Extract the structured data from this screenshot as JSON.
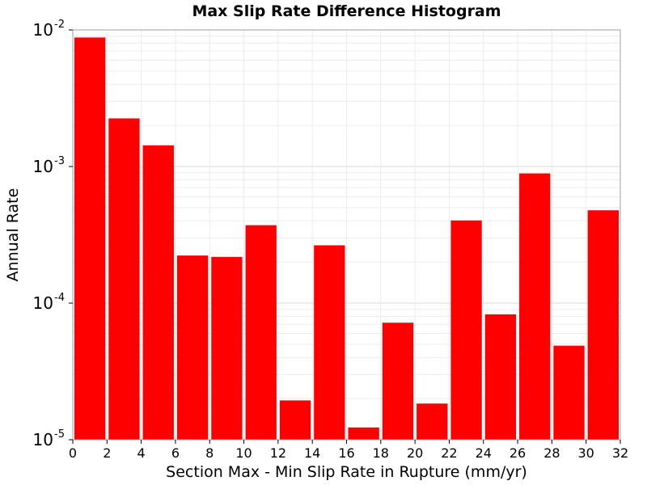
{
  "chart_data": {
    "type": "bar",
    "title": "Max Slip Rate Difference Histogram",
    "xlabel": "Section Max - Min Slip Rate in Rupture (mm/yr)",
    "ylabel": "Annual Rate",
    "yscale": "log",
    "xlim": [
      0,
      32
    ],
    "ylim": [
      1e-05,
      0.01
    ],
    "x_ticks": [
      "0",
      "2",
      "4",
      "6",
      "8",
      "10",
      "12",
      "14",
      "16",
      "18",
      "20",
      "22",
      "24",
      "26",
      "28",
      "30",
      "32"
    ],
    "y_ticks": [
      {
        "value": 0.01,
        "base": "10",
        "exp": "-2"
      },
      {
        "value": 0.001,
        "base": "10",
        "exp": "-3"
      },
      {
        "value": 0.0001,
        "base": "10",
        "exp": "-4"
      },
      {
        "value": 1e-05,
        "base": "10",
        "exp": "-5"
      }
    ],
    "grid": true,
    "bar_color": "#ff0000",
    "bars": [
      {
        "x": [
          0,
          2
        ],
        "value": 0.0088
      },
      {
        "x": [
          2,
          4
        ],
        "value": 0.00225
      },
      {
        "x": [
          4,
          6
        ],
        "value": 0.00143
      },
      {
        "x": [
          6,
          8
        ],
        "value": 0.000223
      },
      {
        "x": [
          8,
          10
        ],
        "value": 0.000218
      },
      {
        "x": [
          10,
          12
        ],
        "value": 0.000372
      },
      {
        "x": [
          12,
          14
        ],
        "value": 1.94e-05
      },
      {
        "x": [
          14,
          16
        ],
        "value": 0.000265
      },
      {
        "x": [
          16,
          18
        ],
        "value": 1.23e-05
      },
      {
        "x": [
          18,
          20
        ],
        "value": 7.19e-05
      },
      {
        "x": [
          20,
          22
        ],
        "value": 1.84e-05
      },
      {
        "x": [
          22,
          24
        ],
        "value": 0.000403
      },
      {
        "x": [
          24,
          26
        ],
        "value": 8.28e-05
      },
      {
        "x": [
          26,
          28
        ],
        "value": 0.00089
      },
      {
        "x": [
          28,
          30
        ],
        "value": 4.88e-05
      },
      {
        "x": [
          30,
          32
        ],
        "value": 0.000478
      }
    ]
  }
}
